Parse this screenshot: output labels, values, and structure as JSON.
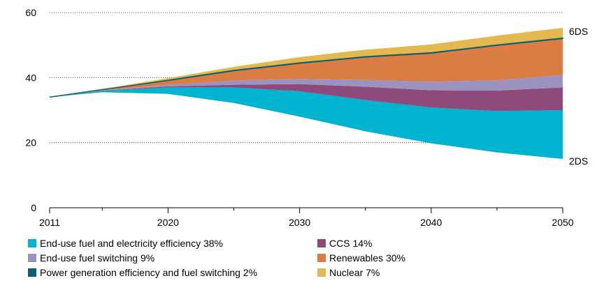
{
  "chart_data": {
    "type": "area",
    "title": "",
    "xlabel": "",
    "ylabel": "",
    "x": [
      2011,
      2015,
      2020,
      2025,
      2030,
      2035,
      2040,
      2045,
      2050
    ],
    "xticks": [
      "2011",
      "2020",
      "2030",
      "2040",
      "2050"
    ],
    "yticks": [
      "0",
      "20",
      "40",
      "60"
    ],
    "xlim": [
      2011,
      2050
    ],
    "ylim": [
      0,
      60
    ],
    "grid": "horizontal dotted",
    "legend_position": "bottom",
    "baseline_2DS": [
      34,
      35.5,
      35,
      32.2,
      28,
      23.5,
      19.8,
      17,
      15
    ],
    "series": [
      {
        "name": "End-use fuel and electricity efficiency 38%",
        "color": "#00b4d0",
        "values": [
          0,
          0.4,
          2.0,
          4.8,
          7.8,
          9.6,
          11.0,
          12.7,
          15.0
        ]
      },
      {
        "name": "CCS 14%",
        "color": "#8e4a7a",
        "values": [
          0,
          0.1,
          0.3,
          0.8,
          2.2,
          4.1,
          5.3,
          6.3,
          7.0
        ]
      },
      {
        "name": "End-use fuel switching 9%",
        "color": "#9b93bf",
        "values": [
          0,
          0.1,
          0.5,
          1.3,
          1.6,
          2.1,
          2.6,
          3.2,
          3.8
        ]
      },
      {
        "name": "Renewables 30%",
        "color": "#db7c43",
        "values": [
          0,
          0.2,
          1.3,
          3.0,
          4.8,
          7.0,
          8.8,
          10.7,
          11.2
        ]
      },
      {
        "name": "Power generation efficiency and fuel switching 2%",
        "color": "#0a5f73",
        "values": [
          0,
          0.1,
          0.25,
          0.3,
          0.3,
          0.3,
          0.3,
          0.3,
          0.3
        ]
      },
      {
        "name": "Nuclear 7%",
        "color": "#e3b84e",
        "values": [
          0,
          0.1,
          0.5,
          0.9,
          1.6,
          2.0,
          2.4,
          2.7,
          3.0
        ]
      }
    ],
    "end_labels": {
      "top": "6DS",
      "bottom": "2DS"
    }
  },
  "legend": [
    {
      "label": "End-use fuel and electricity efficiency 38%",
      "color": "#00b4d0"
    },
    {
      "label": "CCS 14%",
      "color": "#8e4a7a"
    },
    {
      "label": "End-use fuel switching 9%",
      "color": "#9b93bf"
    },
    {
      "label": "Renewables 30%",
      "color": "#db7c43"
    },
    {
      "label": "Power generation efficiency and fuel switching 2%",
      "color": "#0a5f73"
    },
    {
      "label": "Nuclear 7%",
      "color": "#e3b84e"
    }
  ]
}
